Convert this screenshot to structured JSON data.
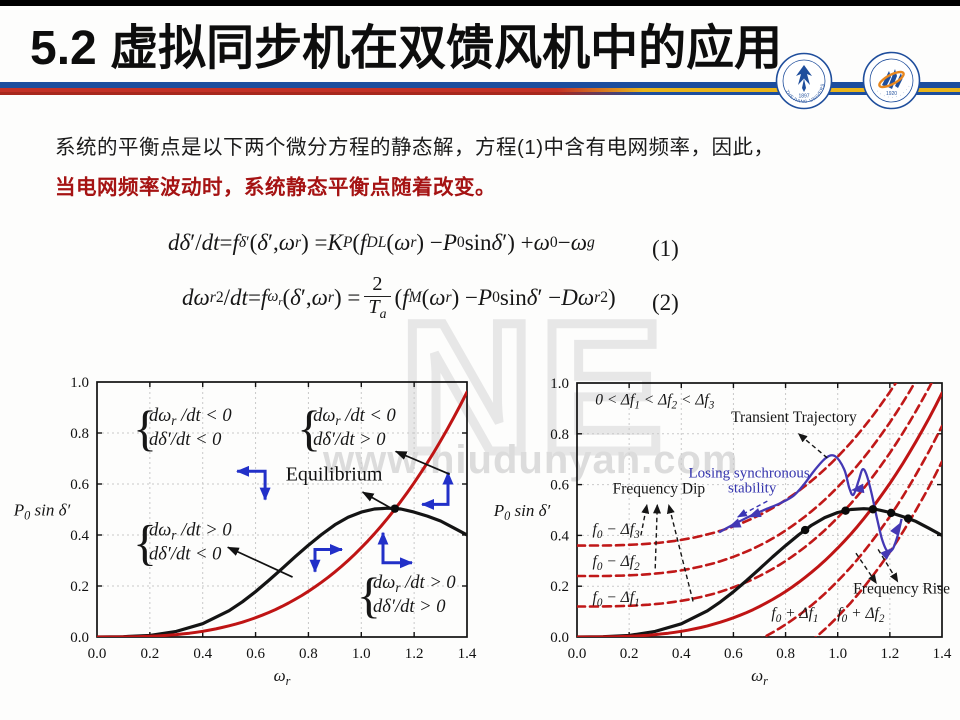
{
  "header": {
    "title": "5.2 虚拟同步机在双馈风机中的应用",
    "stripe_colors": {
      "blue": "#1c4e9e",
      "red": "#b02a20",
      "yellow": "#e9b51b"
    }
  },
  "logos": [
    {
      "name": "zhejiang-university-logo",
      "ring_text": "ZHEJIANG UNIVERSITY",
      "year": "1897",
      "color": "#1f4e9c"
    },
    {
      "name": "college-emblem-logo",
      "ring_text": "· · · · · · · · · ·",
      "year": "1920",
      "color": "#1f4e9c",
      "accent": "#e8871e"
    }
  ],
  "body": {
    "line1": "系统的平衡点是以下两个微分方程的静态解，方程(1)中含有电网频率，因此，",
    "line2": "当电网频率波动时，系统静态平衡点随着改变。",
    "line2_color": "#a51313"
  },
  "equations": [
    {
      "html": "<i>d</i><i>δ</i>′/<i>dt</i> = <i>f</i><sub><i>δ</i>′</sub> (<i>δ</i>′, <i>ω</i><sub><i>r</i></sub>) = <i>K</i><sub><i>P</i></sub> (<i>f</i><sub><i>DL</i></sub> (<i>ω</i><sub><i>r</i></sub>) − <i>P</i><sub>0</sub> sin <i>δ</i>′) + <i>ω</i><sub>0</sub> − <i>ω</i><sub><i>g</i></sub>",
      "number": "(1)"
    },
    {
      "html": "<i>d</i><i>ω</i><sub><i>r</i></sub><sup>2</sup>/<i>dt</i> = <i>f</i><sub><i>ω</i><sub><i>r</i></sub></sub> (<i>δ</i>′, <i>ω</i><sub><i>r</i></sub>) = <span class=\"frac\"><span class=\"fnum\">2</span><span class=\"fden\"><i>T</i><sub><i>a</i></sub></span></span> (<i>f</i><sub><i>M</i></sub> (<i>ω</i><sub><i>r</i></sub>) − <i>P</i><sub>0</sub> sin <i>δ</i>′ − <i>D</i><i>ω</i><sub><i>r</i></sub><sup>2</sup>)",
      "number": "(2)"
    }
  ],
  "watermarks": {
    "letters": "NE",
    "site": "www.niudunyan.com"
  },
  "chart_data": [
    {
      "id": "phase-plane-regions",
      "type": "line",
      "xlabel": "ω_{r}",
      "ylabel": "P_{0} sin δ′",
      "xlim": [
        0,
        1.4
      ],
      "ylim": [
        0,
        1.0
      ],
      "grid": true,
      "xticks": [
        "0.0",
        "0.2",
        "0.4",
        "0.6",
        "0.8",
        "1.0",
        "1.2",
        "1.4"
      ],
      "yticks": [
        "0.0",
        "0.2",
        "0.4",
        "0.6",
        "0.8",
        "1.0"
      ],
      "curves": [
        {
          "name": "electromagnetic-power-curve",
          "color": "#141414",
          "width": 3.2,
          "dash": null,
          "points": [
            [
              0,
              0
            ],
            [
              0.1,
              0.001
            ],
            [
              0.2,
              0.006
            ],
            [
              0.3,
              0.022
            ],
            [
              0.4,
              0.052
            ],
            [
              0.5,
              0.103
            ],
            [
              0.55,
              0.138
            ],
            [
              0.6,
              0.178
            ],
            [
              0.65,
              0.222
            ],
            [
              0.7,
              0.268
            ],
            [
              0.75,
              0.315
            ],
            [
              0.8,
              0.36
            ],
            [
              0.85,
              0.402
            ],
            [
              0.9,
              0.44
            ],
            [
              0.95,
              0.47
            ],
            [
              1.0,
              0.49
            ],
            [
              1.05,
              0.502
            ],
            [
              1.1,
              0.505
            ],
            [
              1.15,
              0.502
            ],
            [
              1.2,
              0.49
            ],
            [
              1.25,
              0.474
            ],
            [
              1.3,
              0.455
            ],
            [
              1.35,
              0.428
            ],
            [
              1.4,
              0.4
            ]
          ]
        },
        {
          "name": "droop-power-curve-f0",
          "color": "#bf1414",
          "width": 3.0,
          "dash": null,
          "cubic": {
            "a": 0.35,
            "c": 0
          }
        }
      ],
      "equilibrium_dots_x": [
        1.127
      ],
      "labels": [
        {
          "text": "Equilibrium",
          "x": 0.897,
          "y": 0.614,
          "size": 20,
          "color": "#111111",
          "italic": false,
          "anchor": "middle"
        }
      ],
      "brace_groups": [
        {
          "x": 0.136,
          "y": 0.819,
          "lines": [
            "dω_{r} /dt < 0",
            "dδ′/dt < 0"
          ]
        },
        {
          "x": 0.757,
          "y": 0.819,
          "lines": [
            "dω_{r} /dt < 0",
            "dδ′/dt > 0"
          ]
        },
        {
          "x": 0.136,
          "y": 0.37,
          "lines": [
            "dω_{r} /dt > 0",
            "dδ′/dt < 0"
          ]
        },
        {
          "x": 0.984,
          "y": 0.165,
          "lines": [
            "dω_{r} /dt > 0",
            "dδ′/dt > 0"
          ]
        }
      ],
      "pointer_arrows": [
        {
          "from": [
            1.118,
            0.502
          ],
          "to": [
            1.005,
            0.568
          ],
          "dash": false,
          "color": "#111111"
        },
        {
          "from": [
            1.335,
            0.638
          ],
          "to": [
            1.13,
            0.728
          ],
          "dash": false,
          "color": "#111111"
        },
        {
          "from": [
            0.74,
            0.235
          ],
          "to": [
            0.495,
            0.352
          ],
          "dash": false,
          "color": "#111111"
        }
      ],
      "direction_arrows": [
        {
          "pts": [
            [
              0.53,
              0.65
            ],
            [
              0.636,
              0.65
            ],
            [
              0.636,
              0.539
            ]
          ]
        },
        {
          "pts": [
            [
              1.328,
              0.645
            ],
            [
              1.328,
              0.52
            ],
            [
              1.23,
              0.52
            ]
          ]
        },
        {
          "pts": [
            [
              0.927,
              0.343
            ],
            [
              0.825,
              0.343
            ],
            [
              0.825,
              0.256
            ]
          ]
        },
        {
          "pts": [
            [
              1.082,
              0.409
            ],
            [
              1.082,
              0.291
            ],
            [
              1.192,
              0.291
            ]
          ]
        }
      ]
    },
    {
      "id": "frequency-deviation-trajectory",
      "type": "line",
      "xlabel": "ω_{r}",
      "ylabel": "P_{0} sin δ′",
      "xlim": [
        0,
        1.4
      ],
      "ylim": [
        0,
        1.0
      ],
      "grid": true,
      "xticks": [
        "0.0",
        "0.2",
        "0.4",
        "0.6",
        "0.8",
        "1.0",
        "1.2",
        "1.4"
      ],
      "yticks": [
        "0.0",
        "0.2",
        "0.4",
        "0.6",
        "0.8",
        "1.0"
      ],
      "curves": [
        {
          "name": "droop-curve-f0-minus-df3",
          "color": "#c01818",
          "width": 2.6,
          "dash": "8 5",
          "cubic": {
            "a": 0.35,
            "c": 0.36
          }
        },
        {
          "name": "droop-curve-f0-minus-df2",
          "color": "#c01818",
          "width": 2.6,
          "dash": "8 5",
          "cubic": {
            "a": 0.35,
            "c": 0.24
          }
        },
        {
          "name": "droop-curve-f0-minus-df1",
          "color": "#c01818",
          "width": 2.6,
          "dash": "8 5",
          "cubic": {
            "a": 0.35,
            "c": 0.12
          }
        },
        {
          "name": "droop-curve-f0-plus-df1",
          "color": "#c01818",
          "width": 2.6,
          "dash": "8 5",
          "cubic": {
            "a": 0.35,
            "c": -0.13
          }
        },
        {
          "name": "droop-curve-f0-plus-df2",
          "color": "#c01818",
          "width": 2.6,
          "dash": "8 5",
          "cubic": {
            "a": 0.35,
            "c": -0.27
          }
        },
        {
          "name": "electromagnetic-power-curve",
          "color": "#141414",
          "width": 3.2,
          "dash": null,
          "points": [
            [
              0,
              0
            ],
            [
              0.1,
              0.001
            ],
            [
              0.2,
              0.006
            ],
            [
              0.3,
              0.022
            ],
            [
              0.4,
              0.052
            ],
            [
              0.5,
              0.103
            ],
            [
              0.55,
              0.138
            ],
            [
              0.6,
              0.178
            ],
            [
              0.65,
              0.222
            ],
            [
              0.7,
              0.268
            ],
            [
              0.75,
              0.315
            ],
            [
              0.8,
              0.36
            ],
            [
              0.85,
              0.402
            ],
            [
              0.9,
              0.44
            ],
            [
              0.95,
              0.47
            ],
            [
              1.0,
              0.49
            ],
            [
              1.05,
              0.502
            ],
            [
              1.1,
              0.505
            ],
            [
              1.15,
              0.502
            ],
            [
              1.2,
              0.49
            ],
            [
              1.25,
              0.474
            ],
            [
              1.3,
              0.455
            ],
            [
              1.35,
              0.428
            ],
            [
              1.4,
              0.4
            ]
          ]
        },
        {
          "name": "droop-power-curve-f0",
          "color": "#bf1414",
          "width": 3.0,
          "dash": null,
          "cubic": {
            "a": 0.35,
            "c": 0
          }
        }
      ],
      "equilibrium_dots_x": [
        0.875,
        1.03,
        1.135,
        1.205,
        1.27
      ],
      "labels": [
        {
          "text": "0 < Δf_{1} < Δf_{2} < Δf_{3}",
          "x": 0.07,
          "y": 0.915,
          "size": 15.5,
          "color": "#161616",
          "italic": true,
          "anchor": "start"
        },
        {
          "text": "Transient Trajectory",
          "x": 0.832,
          "y": 0.846,
          "size": 15.5,
          "color": "#161616",
          "italic": false,
          "anchor": "middle"
        },
        {
          "text": "Losing synchronous",
          "x": 0.66,
          "y": 0.628,
          "size": 15,
          "color": "#3434ad",
          "italic": false,
          "anchor": "middle"
        },
        {
          "text": "stability",
          "x": 0.672,
          "y": 0.568,
          "size": 15,
          "color": "#3434ad",
          "italic": false,
          "anchor": "middle"
        },
        {
          "text": "Frequency Dip",
          "x": 0.314,
          "y": 0.565,
          "size": 15.5,
          "color": "#161616",
          "italic": false,
          "anchor": "middle"
        },
        {
          "text": "Frequency Rise",
          "x": 1.245,
          "y": 0.172,
          "size": 15.5,
          "color": "#161616",
          "italic": false,
          "anchor": "middle"
        },
        {
          "text": "f_{0} − Δf_{3}",
          "x": 0.15,
          "y": 0.405,
          "size": 15.5,
          "color": "#161616",
          "italic": true,
          "anchor": "middle"
        },
        {
          "text": "f_{0} − Δf_{2}",
          "x": 0.15,
          "y": 0.28,
          "size": 15.5,
          "color": "#161616",
          "italic": true,
          "anchor": "middle"
        },
        {
          "text": "f_{0} − Δf_{1}",
          "x": 0.15,
          "y": 0.138,
          "size": 15.5,
          "color": "#161616",
          "italic": true,
          "anchor": "middle"
        },
        {
          "text": "f_{0} + Δf_{1}",
          "x": 0.836,
          "y": 0.075,
          "size": 15.5,
          "color": "#161616",
          "italic": true,
          "anchor": "middle"
        },
        {
          "text": "f_{0} + Δf_{2}",
          "x": 1.089,
          "y": 0.075,
          "size": 15.5,
          "color": "#161616",
          "italic": true,
          "anchor": "middle"
        }
      ],
      "brace_groups": [],
      "pointer_arrows": [
        {
          "from": [
            0.96,
            0.705
          ],
          "to": [
            0.85,
            0.8
          ],
          "dash": true,
          "color": "#161616"
        },
        {
          "from": [
            0.245,
            0.4
          ],
          "to": [
            0.268,
            0.52
          ],
          "dash": true,
          "color": "#161616"
        },
        {
          "from": [
            0.3,
            0.27
          ],
          "to": [
            0.308,
            0.52
          ],
          "dash": true,
          "color": "#161616"
        },
        {
          "from": [
            0.445,
            0.14
          ],
          "to": [
            0.352,
            0.52
          ],
          "dash": true,
          "color": "#161616"
        },
        {
          "from": [
            1.07,
            0.33
          ],
          "to": [
            1.148,
            0.212
          ],
          "dash": true,
          "color": "#161616"
        },
        {
          "from": [
            1.155,
            0.345
          ],
          "to": [
            1.23,
            0.218
          ],
          "dash": true,
          "color": "#161616"
        },
        {
          "from": [
            0.73,
            0.535
          ],
          "to": [
            0.617,
            0.473
          ],
          "dash": true,
          "color": "#3a35b5"
        }
      ],
      "direction_arrows": [],
      "trajectory": {
        "color": "#4438b4",
        "points": [
          [
            0.545,
            0.412
          ],
          [
            0.6,
            0.443
          ],
          [
            0.66,
            0.474
          ],
          [
            0.72,
            0.501
          ],
          [
            0.78,
            0.527
          ],
          [
            0.83,
            0.556
          ],
          [
            0.87,
            0.6
          ],
          [
            0.91,
            0.655
          ],
          [
            0.955,
            0.705
          ],
          [
            0.99,
            0.712
          ],
          [
            1.025,
            0.66
          ],
          [
            1.045,
            0.585
          ],
          [
            1.06,
            0.56
          ],
          [
            1.08,
            0.615
          ],
          [
            1.095,
            0.66
          ],
          [
            1.11,
            0.64
          ],
          [
            1.13,
            0.565
          ],
          [
            1.15,
            0.47
          ],
          [
            1.17,
            0.385
          ],
          [
            1.19,
            0.338
          ],
          [
            1.21,
            0.345
          ],
          [
            1.23,
            0.4
          ],
          [
            1.245,
            0.465
          ]
        ],
        "heads": [
          {
            "x": 0.578,
            "y": 0.43,
            "a": 158
          },
          {
            "x": 0.655,
            "y": 0.471,
            "a": 158
          },
          {
            "x": 1.05,
            "y": 0.578,
            "a": 172
          },
          {
            "x": 1.213,
            "y": 0.352,
            "a": 318
          },
          {
            "x": 1.242,
            "y": 0.452,
            "a": 300
          }
        ]
      }
    }
  ]
}
